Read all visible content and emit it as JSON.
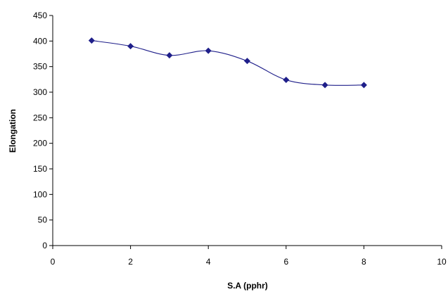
{
  "chart_data": {
    "type": "scatter",
    "title": "",
    "xlabel": "S.A (pphr)",
    "ylabel": "Elongation",
    "xlim": [
      0,
      10
    ],
    "ylim": [
      0,
      450
    ],
    "xticks": [
      0,
      2,
      4,
      6,
      8,
      10
    ],
    "yticks": [
      0,
      50,
      100,
      150,
      200,
      250,
      300,
      350,
      400,
      450
    ],
    "grid": false,
    "legend": "none",
    "line_style": "smoothed",
    "marker": "diamond",
    "color": "#1f1f8a",
    "series": [
      {
        "x": [
          1,
          2,
          3,
          4,
          5,
          6,
          7,
          8
        ],
        "y": [
          401,
          390,
          372,
          381,
          361,
          324,
          314,
          314
        ]
      }
    ]
  }
}
